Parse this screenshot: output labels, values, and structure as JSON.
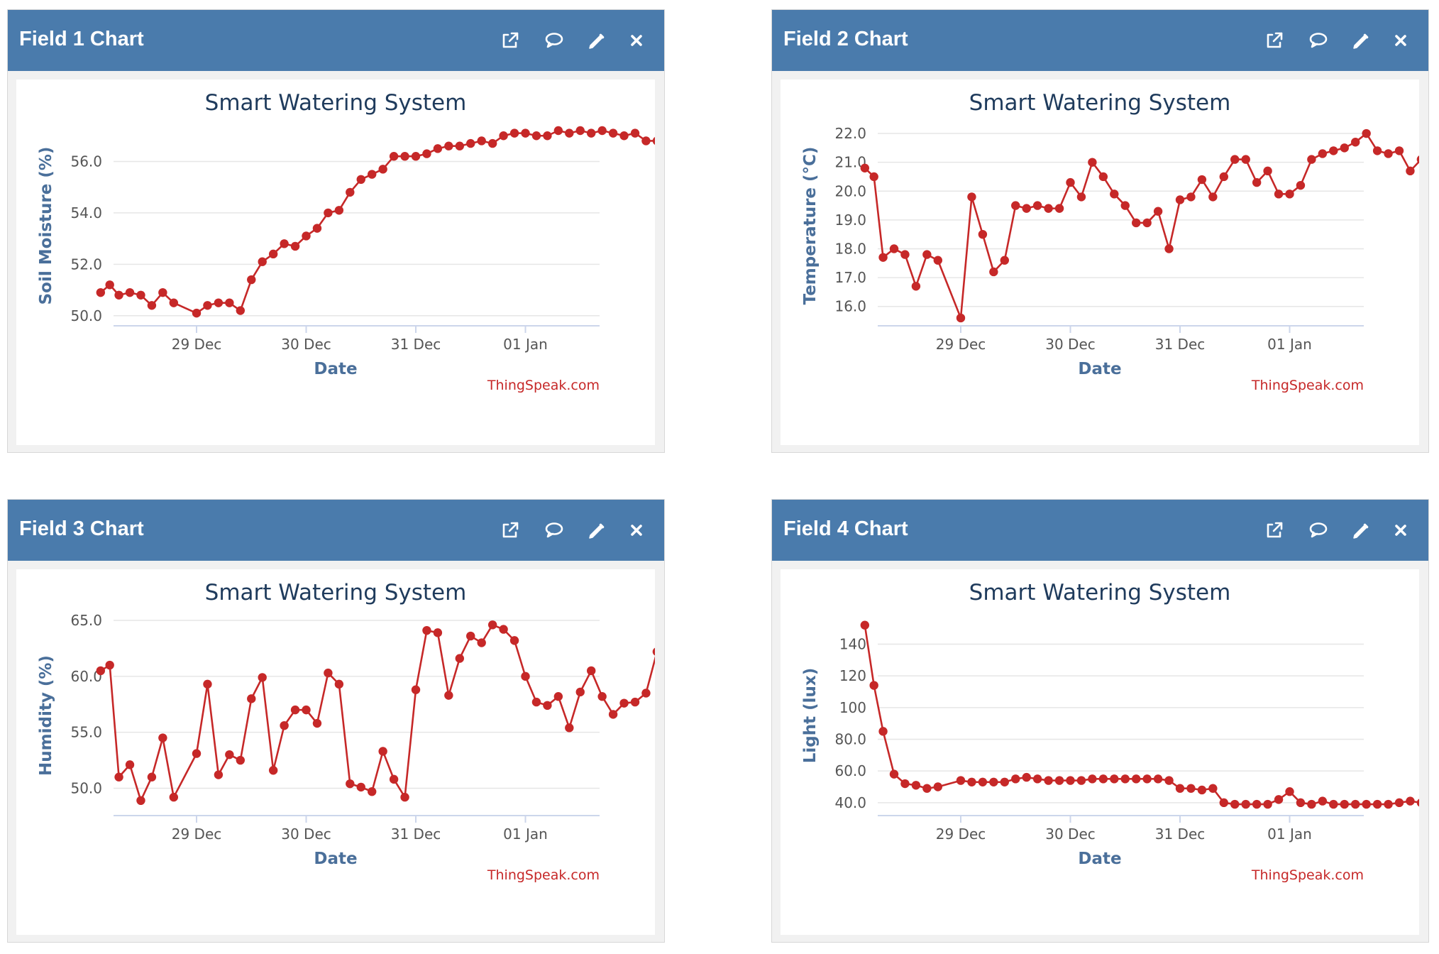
{
  "panels": [
    {
      "title": "Field 1 Chart",
      "icons": [
        "external-link-icon",
        "comment-icon",
        "pencil-icon",
        "close-icon"
      ],
      "chart": {
        "title": "Smart Watering System",
        "ylabel": "Soil Moisture (%)",
        "xlabel": "Date",
        "yticks": [
          "50.0",
          "52.0",
          "54.0",
          "56.0"
        ],
        "xticks": [
          "29 Dec",
          "30 Dec",
          "31 Dec",
          "01 Jan"
        ],
        "credit": "ThingSpeak.com"
      }
    },
    {
      "title": "Field 2 Chart",
      "icons": [
        "external-link-icon",
        "comment-icon",
        "pencil-icon",
        "close-icon"
      ],
      "chart": {
        "title": "Smart Watering System",
        "ylabel": "Temperature (°C)",
        "xlabel": "Date",
        "yticks": [
          "16.0",
          "17.0",
          "18.0",
          "19.0",
          "20.0",
          "21.0",
          "22.0"
        ],
        "xticks": [
          "29 Dec",
          "30 Dec",
          "31 Dec",
          "01 Jan"
        ],
        "credit": "ThingSpeak.com"
      }
    },
    {
      "title": "Field 3 Chart",
      "icons": [
        "external-link-icon",
        "comment-icon",
        "pencil-icon",
        "close-icon"
      ],
      "chart": {
        "title": "Smart Watering System",
        "ylabel": "Humidity (%)",
        "xlabel": "Date",
        "yticks": [
          "50.0",
          "55.0",
          "60.0",
          "65.0"
        ],
        "xticks": [
          "29 Dec",
          "30 Dec",
          "31 Dec",
          "01 Jan"
        ],
        "credit": "ThingSpeak.com"
      }
    },
    {
      "title": "Field 4 Chart",
      "icons": [
        "external-link-icon",
        "comment-icon",
        "pencil-icon",
        "close-icon"
      ],
      "chart": {
        "title": "Smart Watering System",
        "ylabel": "Light (lux)",
        "xlabel": "Date",
        "yticks": [
          "40.0",
          "60.0",
          "80.0",
          "100",
          "120",
          "140"
        ],
        "xticks": [
          "29 Dec",
          "30 Dec",
          "31 Dec",
          "01 Jan"
        ],
        "credit": "ThingSpeak.com"
      }
    }
  ],
  "colors": {
    "header": "#4a7bac",
    "series": "#c62828",
    "axis_title": "#4a6f9a",
    "chart_title": "#1f3b5c"
  },
  "chart_data": [
    {
      "type": "line",
      "title": "Smart Watering System",
      "xlabel": "Date",
      "ylabel": "Soil Moisture (%)",
      "ylim": [
        49.8,
        57.2
      ],
      "xlim": [
        "28 Dec 03:00",
        "01 Jan 13:00"
      ],
      "x_ticks": [
        "29 Dec",
        "30 Dec",
        "31 Dec",
        "01 Jan"
      ],
      "grid": true,
      "series": [
        {
          "color": "#c62828",
          "points": [
            [
              "28 Dec 03:00",
              50.9
            ],
            [
              "28 Dec 05:00",
              51.2
            ],
            [
              "28 Dec 07:00",
              50.8
            ],
            [
              "28 Dec 09:24",
              50.9
            ],
            [
              "28 Dec 11:48",
              50.8
            ],
            [
              "28 Dec 14:12",
              50.4
            ],
            [
              "28 Dec 16:36",
              50.9
            ],
            [
              "28 Dec 19:00",
              50.5
            ],
            [
              "29 Dec 00:00",
              50.1
            ],
            [
              "29 Dec 02:24",
              50.4
            ],
            [
              "29 Dec 04:48",
              50.5
            ],
            [
              "29 Dec 07:12",
              50.5
            ],
            [
              "29 Dec 09:36",
              50.2
            ],
            [
              "29 Dec 12:00",
              51.4
            ],
            [
              "29 Dec 14:24",
              52.1
            ],
            [
              "29 Dec 16:48",
              52.4
            ],
            [
              "29 Dec 19:12",
              52.8
            ],
            [
              "29 Dec 21:36",
              52.7
            ],
            [
              "30 Dec 00:00",
              53.1
            ],
            [
              "30 Dec 02:24",
              53.4
            ],
            [
              "30 Dec 04:48",
              54.0
            ],
            [
              "30 Dec 07:12",
              54.1
            ],
            [
              "30 Dec 09:36",
              54.8
            ],
            [
              "30 Dec 12:00",
              55.3
            ],
            [
              "30 Dec 14:24",
              55.5
            ],
            [
              "30 Dec 16:48",
              55.7
            ],
            [
              "30 Dec 19:12",
              56.2
            ],
            [
              "30 Dec 21:36",
              56.2
            ],
            [
              "31 Dec 00:00",
              56.2
            ],
            [
              "31 Dec 02:24",
              56.3
            ],
            [
              "31 Dec 04:48",
              56.5
            ],
            [
              "31 Dec 07:12",
              56.6
            ],
            [
              "31 Dec 09:36",
              56.6
            ],
            [
              "31 Dec 12:00",
              56.7
            ],
            [
              "31 Dec 14:24",
              56.8
            ],
            [
              "31 Dec 16:48",
              56.7
            ],
            [
              "31 Dec 19:12",
              57.0
            ],
            [
              "31 Dec 21:36",
              57.1
            ],
            [
              "01 Jan 00:00",
              57.1
            ],
            [
              "01 Jan 02:24",
              57.0
            ],
            [
              "01 Jan 04:48",
              57.0
            ],
            [
              "01 Jan 07:12",
              57.2
            ],
            [
              "01 Jan 09:36",
              57.1
            ],
            [
              "01 Jan 12:00",
              57.2
            ],
            [
              "01 Jan 14:24",
              57.1
            ],
            [
              "01 Jan 16:48",
              57.2
            ],
            [
              "01 Jan 19:12",
              57.1
            ],
            [
              "01 Jan 21:36",
              57.0
            ],
            [
              "02 Jan 00:00",
              57.1
            ],
            [
              "02 Jan 02:24",
              56.8
            ],
            [
              "02 Jan 04:48",
              56.8
            ]
          ]
        }
      ]
    },
    {
      "type": "line",
      "title": "Smart Watering System",
      "xlabel": "Date",
      "ylabel": "Temperature (°C)",
      "ylim": [
        15.5,
        22.1
      ],
      "x_ticks": [
        "29 Dec",
        "30 Dec",
        "31 Dec",
        "01 Jan"
      ],
      "grid": true,
      "series": [
        {
          "color": "#c62828",
          "points": [
            [
              "28 Dec 03:00",
              20.8
            ],
            [
              "28 Dec 05:00",
              20.5
            ],
            [
              "28 Dec 07:00",
              17.7
            ],
            [
              "28 Dec 09:24",
              18.0
            ],
            [
              "28 Dec 11:48",
              17.8
            ],
            [
              "28 Dec 14:12",
              16.7
            ],
            [
              "28 Dec 16:36",
              17.8
            ],
            [
              "28 Dec 19:00",
              17.6
            ],
            [
              "29 Dec 00:00",
              15.6
            ],
            [
              "29 Dec 02:24",
              19.8
            ],
            [
              "29 Dec 04:48",
              18.5
            ],
            [
              "29 Dec 07:12",
              17.2
            ],
            [
              "29 Dec 09:36",
              17.6
            ],
            [
              "29 Dec 12:00",
              19.5
            ],
            [
              "29 Dec 14:24",
              19.4
            ],
            [
              "29 Dec 16:48",
              19.5
            ],
            [
              "29 Dec 19:12",
              19.4
            ],
            [
              "29 Dec 21:36",
              19.4
            ],
            [
              "30 Dec 00:00",
              20.3
            ],
            [
              "30 Dec 02:24",
              19.8
            ],
            [
              "30 Dec 04:48",
              21.0
            ],
            [
              "30 Dec 07:12",
              20.5
            ],
            [
              "30 Dec 09:36",
              19.9
            ],
            [
              "30 Dec 12:00",
              19.5
            ],
            [
              "30 Dec 14:24",
              18.9
            ],
            [
              "30 Dec 16:48",
              18.9
            ],
            [
              "30 Dec 19:12",
              19.3
            ],
            [
              "30 Dec 21:36",
              18.0
            ],
            [
              "31 Dec 00:00",
              19.7
            ],
            [
              "31 Dec 02:24",
              19.8
            ],
            [
              "31 Dec 04:48",
              20.4
            ],
            [
              "31 Dec 07:12",
              19.8
            ],
            [
              "31 Dec 09:36",
              20.5
            ],
            [
              "31 Dec 12:00",
              21.1
            ],
            [
              "31 Dec 14:24",
              21.1
            ],
            [
              "31 Dec 16:48",
              20.3
            ],
            [
              "31 Dec 19:12",
              20.7
            ],
            [
              "31 Dec 21:36",
              19.9
            ],
            [
              "01 Jan 00:00",
              19.9
            ],
            [
              "01 Jan 02:24",
              20.2
            ],
            [
              "01 Jan 04:48",
              21.1
            ],
            [
              "01 Jan 07:12",
              21.3
            ],
            [
              "01 Jan 09:36",
              21.4
            ],
            [
              "01 Jan 12:00",
              21.5
            ],
            [
              "01 Jan 14:24",
              21.7
            ],
            [
              "01 Jan 16:48",
              22.0
            ],
            [
              "01 Jan 19:12",
              21.4
            ],
            [
              "01 Jan 21:36",
              21.3
            ],
            [
              "02 Jan 00:00",
              21.4
            ],
            [
              "02 Jan 02:24",
              20.7
            ],
            [
              "02 Jan 04:48",
              21.1
            ]
          ]
        }
      ]
    },
    {
      "type": "line",
      "title": "Smart Watering System",
      "xlabel": "Date",
      "ylabel": "Humidity (%)",
      "ylim": [
        48,
        65
      ],
      "x_ticks": [
        "29 Dec",
        "30 Dec",
        "31 Dec",
        "01 Jan"
      ],
      "grid": true,
      "series": [
        {
          "color": "#c62828",
          "points": [
            [
              "28 Dec 03:00",
              60.5
            ],
            [
              "28 Dec 05:00",
              61.0
            ],
            [
              "28 Dec 07:00",
              51.0
            ],
            [
              "28 Dec 09:24",
              52.1
            ],
            [
              "28 Dec 11:48",
              48.9
            ],
            [
              "28 Dec 14:12",
              51.0
            ],
            [
              "28 Dec 16:36",
              54.5
            ],
            [
              "28 Dec 19:00",
              49.2
            ],
            [
              "29 Dec 00:00",
              53.1
            ],
            [
              "29 Dec 02:24",
              59.3
            ],
            [
              "29 Dec 04:48",
              51.2
            ],
            [
              "29 Dec 07:12",
              53.0
            ],
            [
              "29 Dec 09:36",
              52.5
            ],
            [
              "29 Dec 12:00",
              58.0
            ],
            [
              "29 Dec 14:24",
              59.9
            ],
            [
              "29 Dec 16:48",
              51.6
            ],
            [
              "29 Dec 19:12",
              55.6
            ],
            [
              "29 Dec 21:36",
              57.0
            ],
            [
              "30 Dec 00:00",
              57.0
            ],
            [
              "30 Dec 02:24",
              55.8
            ],
            [
              "30 Dec 04:48",
              60.3
            ],
            [
              "30 Dec 07:12",
              59.3
            ],
            [
              "30 Dec 09:36",
              50.4
            ],
            [
              "30 Dec 12:00",
              50.1
            ],
            [
              "30 Dec 14:24",
              49.7
            ],
            [
              "30 Dec 16:48",
              53.3
            ],
            [
              "30 Dec 19:12",
              50.8
            ],
            [
              "30 Dec 21:36",
              49.2
            ],
            [
              "31 Dec 00:00",
              58.8
            ],
            [
              "31 Dec 02:24",
              64.1
            ],
            [
              "31 Dec 04:48",
              63.9
            ],
            [
              "31 Dec 07:12",
              58.3
            ],
            [
              "31 Dec 09:36",
              61.6
            ],
            [
              "31 Dec 12:00",
              63.6
            ],
            [
              "31 Dec 14:24",
              63.0
            ],
            [
              "31 Dec 16:48",
              64.6
            ],
            [
              "31 Dec 19:12",
              64.2
            ],
            [
              "31 Dec 21:36",
              63.2
            ],
            [
              "01 Jan 00:00",
              60.0
            ],
            [
              "01 Jan 02:24",
              57.7
            ],
            [
              "01 Jan 04:48",
              57.4
            ],
            [
              "01 Jan 07:12",
              58.2
            ],
            [
              "01 Jan 09:36",
              55.4
            ],
            [
              "01 Jan 12:00",
              58.6
            ],
            [
              "01 Jan 14:24",
              60.5
            ],
            [
              "01 Jan 16:48",
              58.2
            ],
            [
              "01 Jan 19:12",
              56.6
            ],
            [
              "01 Jan 21:36",
              57.6
            ],
            [
              "02 Jan 00:00",
              57.7
            ],
            [
              "02 Jan 02:24",
              58.5
            ],
            [
              "02 Jan 04:48",
              62.2
            ]
          ]
        }
      ]
    },
    {
      "type": "line",
      "title": "Smart Watering System",
      "xlabel": "Date",
      "ylabel": "Light (lux)",
      "ylim": [
        35,
        155
      ],
      "x_ticks": [
        "29 Dec",
        "30 Dec",
        "31 Dec",
        "01 Jan"
      ],
      "grid": true,
      "series": [
        {
          "color": "#c62828",
          "points": [
            [
              "28 Dec 03:00",
              152
            ],
            [
              "28 Dec 05:00",
              114
            ],
            [
              "28 Dec 07:00",
              85
            ],
            [
              "28 Dec 09:24",
              58
            ],
            [
              "28 Dec 11:48",
              52
            ],
            [
              "28 Dec 14:12",
              51
            ],
            [
              "28 Dec 16:36",
              49
            ],
            [
              "28 Dec 19:00",
              50
            ],
            [
              "29 Dec 00:00",
              54
            ],
            [
              "29 Dec 02:24",
              53
            ],
            [
              "29 Dec 04:48",
              53
            ],
            [
              "29 Dec 07:12",
              53
            ],
            [
              "29 Dec 09:36",
              53
            ],
            [
              "29 Dec 12:00",
              55
            ],
            [
              "29 Dec 14:24",
              56
            ],
            [
              "29 Dec 16:48",
              55
            ],
            [
              "29 Dec 19:12",
              54
            ],
            [
              "29 Dec 21:36",
              54
            ],
            [
              "30 Dec 00:00",
              54
            ],
            [
              "30 Dec 02:24",
              54
            ],
            [
              "30 Dec 04:48",
              55
            ],
            [
              "30 Dec 07:12",
              55
            ],
            [
              "30 Dec 09:36",
              55
            ],
            [
              "30 Dec 12:00",
              55
            ],
            [
              "30 Dec 14:24",
              55
            ],
            [
              "30 Dec 16:48",
              55
            ],
            [
              "30 Dec 19:12",
              55
            ],
            [
              "30 Dec 21:36",
              54
            ],
            [
              "31 Dec 00:00",
              49
            ],
            [
              "31 Dec 02:24",
              49
            ],
            [
              "31 Dec 04:48",
              48
            ],
            [
              "31 Dec 07:12",
              49
            ],
            [
              "31 Dec 09:36",
              40
            ],
            [
              "31 Dec 12:00",
              39
            ],
            [
              "31 Dec 14:24",
              39
            ],
            [
              "31 Dec 16:48",
              39
            ],
            [
              "31 Dec 19:12",
              39
            ],
            [
              "31 Dec 21:36",
              42
            ],
            [
              "01 Jan 00:00",
              47
            ],
            [
              "01 Jan 02:24",
              40
            ],
            [
              "01 Jan 04:48",
              39
            ],
            [
              "01 Jan 07:12",
              41
            ],
            [
              "01 Jan 09:36",
              39
            ],
            [
              "01 Jan 12:00",
              39
            ],
            [
              "01 Jan 14:24",
              39
            ],
            [
              "01 Jan 16:48",
              39
            ],
            [
              "01 Jan 19:12",
              39
            ],
            [
              "01 Jan 21:36",
              39
            ],
            [
              "02 Jan 00:00",
              40
            ],
            [
              "02 Jan 02:24",
              41
            ],
            [
              "02 Jan 04:48",
              40
            ]
          ]
        }
      ]
    }
  ]
}
